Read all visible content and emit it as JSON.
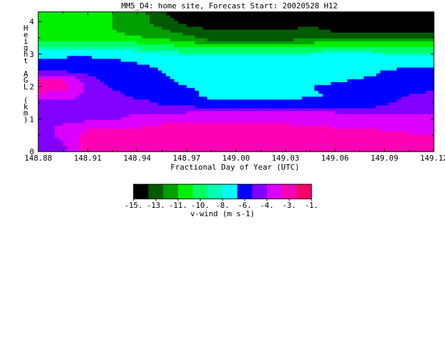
{
  "figure": {
    "title": "MM5_D4: home site,  Forecast Start: 20020528 H12"
  },
  "chart_data": {
    "type": "heatmap",
    "title": "MM5_D4: home site,  Forecast Start: 20020528 H12",
    "xlabel": "Fractional Day of Year (UTC)",
    "ylabel_chars": [
      "H",
      "e",
      "i",
      "g",
      "h",
      "t",
      "",
      "A",
      "G",
      "L",
      "",
      "(",
      "k",
      "m",
      ")"
    ],
    "xlim": [
      148.88,
      149.12
    ],
    "ylim": [
      0,
      4.3
    ],
    "xticks": [
      148.88,
      148.91,
      148.94,
      148.97,
      149.0,
      149.03,
      149.06,
      149.09,
      149.12
    ],
    "xtick_labels": [
      "148.88",
      "148.91",
      "148.94",
      "148.97",
      "149.00",
      "149.03",
      "149.06",
      "149.09",
      "149.12"
    ],
    "yticks": [
      0,
      1,
      2,
      3,
      4
    ],
    "ytick_labels": [
      "0",
      "1",
      "2",
      "3",
      "4"
    ],
    "levels": [
      -15,
      -14,
      -13,
      -12,
      -11,
      -10,
      -9,
      -8,
      -7,
      -6,
      -5,
      -4,
      -3,
      -2,
      -1
    ],
    "colors": [
      "#000000",
      "#005a00",
      "#00a000",
      "#00f000",
      "#00ff66",
      "#00ffb4",
      "#00ffff",
      "#0000ff",
      "#8200ff",
      "#dc00ff",
      "#ff00b4",
      "#ff0066"
    ],
    "colorbar": {
      "label": "v-wind (m s-1)",
      "tick_labels": [
        "-15.",
        "-13.",
        "-11.",
        "-10.",
        "-8.",
        "-6.",
        "-4.",
        "-3.",
        "-1."
      ]
    },
    "grid_x": [
      148.88,
      148.895,
      148.91,
      148.925,
      148.94,
      148.955,
      148.97,
      148.985,
      149.0,
      149.015,
      149.03,
      149.045,
      149.06,
      149.075,
      149.09,
      149.105,
      149.12
    ],
    "grid_y": [
      0,
      0.25,
      0.5,
      0.75,
      1.0,
      1.25,
      1.5,
      1.75,
      2.0,
      2.25,
      2.5,
      2.75,
      3.0,
      3.25,
      3.5,
      3.75,
      4.0,
      4.3
    ],
    "v_wind": [
      [
        -4.5,
        -4.5,
        -2.5,
        -2.4,
        -2.5,
        -2.5,
        -2.4,
        -2.4,
        -2.4,
        -2.4,
        -2.4,
        -2.4,
        -2.4,
        -2.5,
        -2.6,
        -2.6,
        -2.6
      ],
      [
        -4.5,
        -4.3,
        -2.5,
        -2.4,
        -2.4,
        -2.4,
        -2.4,
        -2.4,
        -2.4,
        -2.4,
        -2.4,
        -2.4,
        -2.4,
        -2.5,
        -2.6,
        -2.6,
        -2.6
      ],
      [
        -4.5,
        -4.0,
        -2.6,
        -2.5,
        -2.5,
        -2.5,
        -2.4,
        -2.4,
        -2.4,
        -2.4,
        -2.4,
        -2.4,
        -2.4,
        -2.6,
        -2.8,
        -2.8,
        -2.9
      ],
      [
        -4.5,
        -4.0,
        -3.1,
        -3.0,
        -3.0,
        -2.8,
        -2.6,
        -2.6,
        -2.6,
        -2.6,
        -2.7,
        -2.8,
        -3.0,
        -3.1,
        -3.1,
        -3.4,
        -3.4
      ],
      [
        -4.6,
        -4.6,
        -4.5,
        -4.5,
        -3.5,
        -3.3,
        -3.2,
        -3.2,
        -3.2,
        -3.3,
        -3.4,
        -3.5,
        -3.6,
        -3.8,
        -3.9,
        -3.8,
        -3.8
      ],
      [
        -4.7,
        -4.7,
        -4.6,
        -4.6,
        -4.6,
        -4.5,
        -4.4,
        -4.2,
        -4.1,
        -4.1,
        -4.1,
        -4.2,
        -4.3,
        -4.5,
        -4.4,
        -4.3,
        -4.3
      ],
      [
        -4.8,
        -4.7,
        -4.6,
        -4.6,
        -4.3,
        -5.5,
        -5.5,
        -6.5,
        -6.5,
        -6.5,
        -6.5,
        -6.5,
        -6.5,
        -6.3,
        -5.5,
        -4.5,
        -4.2
      ],
      [
        -3.2,
        -3.4,
        -4.5,
        -4.6,
        -6.0,
        -6.0,
        -6.5,
        -7.5,
        -7.5,
        -7.5,
        -7.5,
        -7.2,
        -6.8,
        -6.5,
        -5.8,
        -5.2,
        -4.5
      ],
      [
        -2.5,
        -2.5,
        -4.5,
        -5.4,
        -6.3,
        -6.5,
        -7.0,
        -7.2,
        -7.4,
        -7.4,
        -7.3,
        -7.0,
        -6.8,
        -6.6,
        -6.3,
        -6.1,
        -6.2
      ],
      [
        -3.0,
        -3.0,
        -4.8,
        -5.7,
        -6.5,
        -6.7,
        -7.5,
        -7.6,
        -7.6,
        -7.6,
        -7.6,
        -7.5,
        -7.2,
        -7.0,
        -6.8,
        -6.5,
        -6.3
      ],
      [
        -5.5,
        -5.5,
        -5.5,
        -6.0,
        -6.7,
        -7.0,
        -7.8,
        -7.8,
        -7.8,
        -7.8,
        -7.8,
        -7.6,
        -7.5,
        -7.3,
        -7.0,
        -6.7,
        -6.5
      ],
      [
        -6.3,
        -6.3,
        -6.3,
        -6.5,
        -7.0,
        -7.3,
        -7.8,
        -8.0,
        -8.0,
        -8.0,
        -8.0,
        -8.0,
        -8.0,
        -7.8,
        -7.7,
        -7.6,
        -7.5
      ],
      [
        -7.5,
        -7.4,
        -7.3,
        -7.6,
        -8.1,
        -8.2,
        -8.6,
        -8.6,
        -8.6,
        -8.6,
        -8.6,
        -8.5,
        -8.4,
        -8.4,
        -8.5,
        -8.5,
        -8.5
      ],
      [
        -9.3,
        -9.2,
        -9.0,
        -9.1,
        -9.3,
        -9.5,
        -10.3,
        -10.4,
        -10.4,
        -10.3,
        -10.2,
        -10.0,
        -9.9,
        -9.9,
        -10.0,
        -10.0,
        -10.1
      ],
      [
        -10.5,
        -10.5,
        -10.5,
        -10.8,
        -10.9,
        -11.2,
        -11.5,
        -12.5,
        -12.5,
        -12.5,
        -12.5,
        -12.4,
        -12.0,
        -11.8,
        -11.8,
        -11.9,
        -12.0
      ],
      [
        -10.8,
        -10.8,
        -10.8,
        -11.0,
        -11.3,
        -11.8,
        -12.6,
        -13.0,
        -13.0,
        -13.0,
        -13.0,
        -12.7,
        -13.2,
        -13.6,
        -13.7,
        -13.6,
        -13.8
      ],
      [
        -10.8,
        -10.8,
        -10.8,
        -11.0,
        -11.3,
        -12.6,
        -13.3,
        -13.6,
        -13.6,
        -13.6,
        -13.6,
        -13.4,
        -13.5,
        -13.6,
        -13.7,
        -13.7,
        -14.2
      ],
      [
        -10.8,
        -10.8,
        -10.8,
        -11.0,
        -11.5,
        -13.0,
        -13.5,
        -14.0,
        -14.0,
        -14.0,
        -14.0,
        -13.5,
        -13.6,
        -13.6,
        -13.7,
        -14.3,
        -15.0
      ]
    ]
  }
}
